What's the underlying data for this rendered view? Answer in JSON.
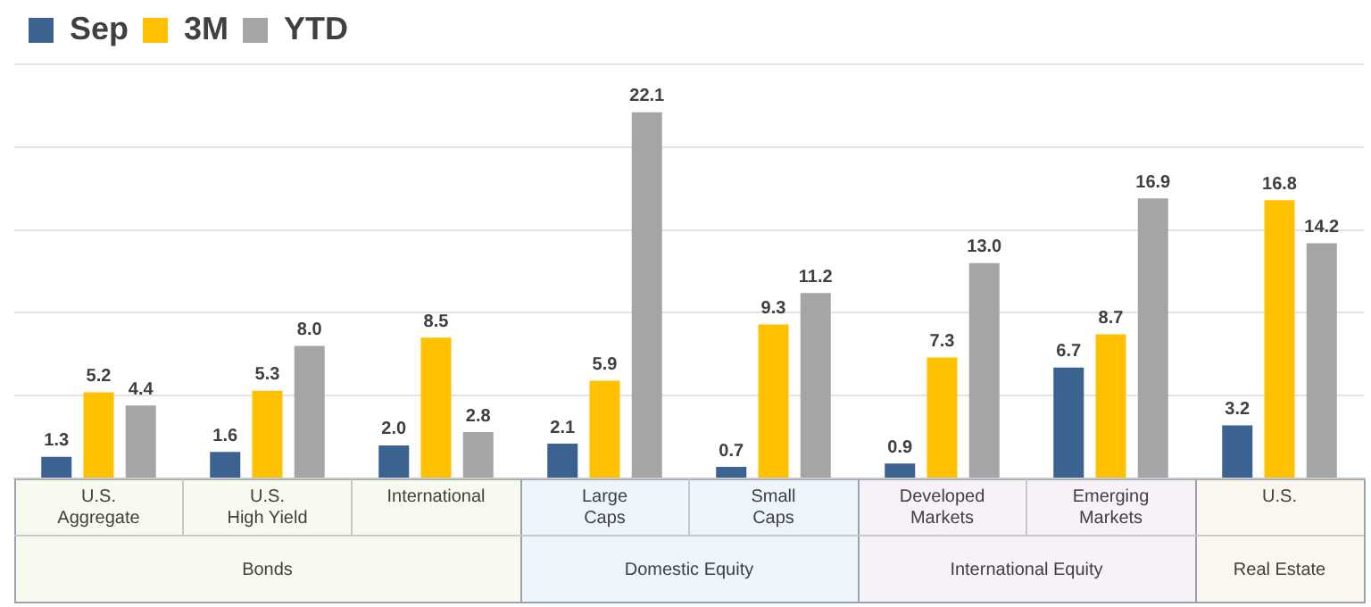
{
  "chart_data": {
    "type": "bar",
    "categories": [
      "U.S. Aggregate",
      "U.S. High Yield",
      "International",
      "Large Caps",
      "Small Caps",
      "Developed Markets",
      "Emerging Markets",
      "U.S."
    ],
    "series": [
      {
        "name": "Sep",
        "color": "#3c6390",
        "values": [
          1.3,
          1.6,
          2.0,
          2.1,
          0.7,
          0.9,
          6.7,
          3.2
        ],
        "value_labels": [
          "1.3",
          "1.6",
          "2.0",
          "2.1",
          "0.7",
          "0.9",
          "6.7",
          "3.2"
        ]
      },
      {
        "name": "3M",
        "color": "#ffc000",
        "values": [
          5.2,
          5.3,
          8.5,
          5.9,
          9.3,
          7.3,
          8.7,
          16.8
        ],
        "value_labels": [
          "5.2",
          "5.3",
          "8.5",
          "5.9",
          "9.3",
          "7.3",
          "8.7",
          "16.8"
        ]
      },
      {
        "name": "YTD",
        "color": "#a5a5a5",
        "values": [
          4.4,
          8.0,
          2.8,
          22.1,
          11.2,
          13.0,
          16.9,
          14.2
        ],
        "value_labels": [
          "4.4",
          "8.0",
          "2.8",
          "22.1",
          "11.2",
          "13.0",
          "16.9",
          "14.2"
        ]
      }
    ],
    "ylim": [
      0,
      25
    ],
    "yticks": [
      {
        "value": 0,
        "label": null
      },
      {
        "value": 5,
        "label": null
      },
      {
        "value": 10,
        "label": null
      },
      {
        "value": 15,
        "label": null
      },
      {
        "value": 20,
        "label": null
      },
      {
        "value": 25,
        "label": null
      }
    ],
    "tick_labels": "x",
    "grid": "y",
    "legend": "top left",
    "annotations": [
      "Bonds",
      "Domestic Equity",
      "International Equity",
      "Real Estate"
    ]
  }
}
